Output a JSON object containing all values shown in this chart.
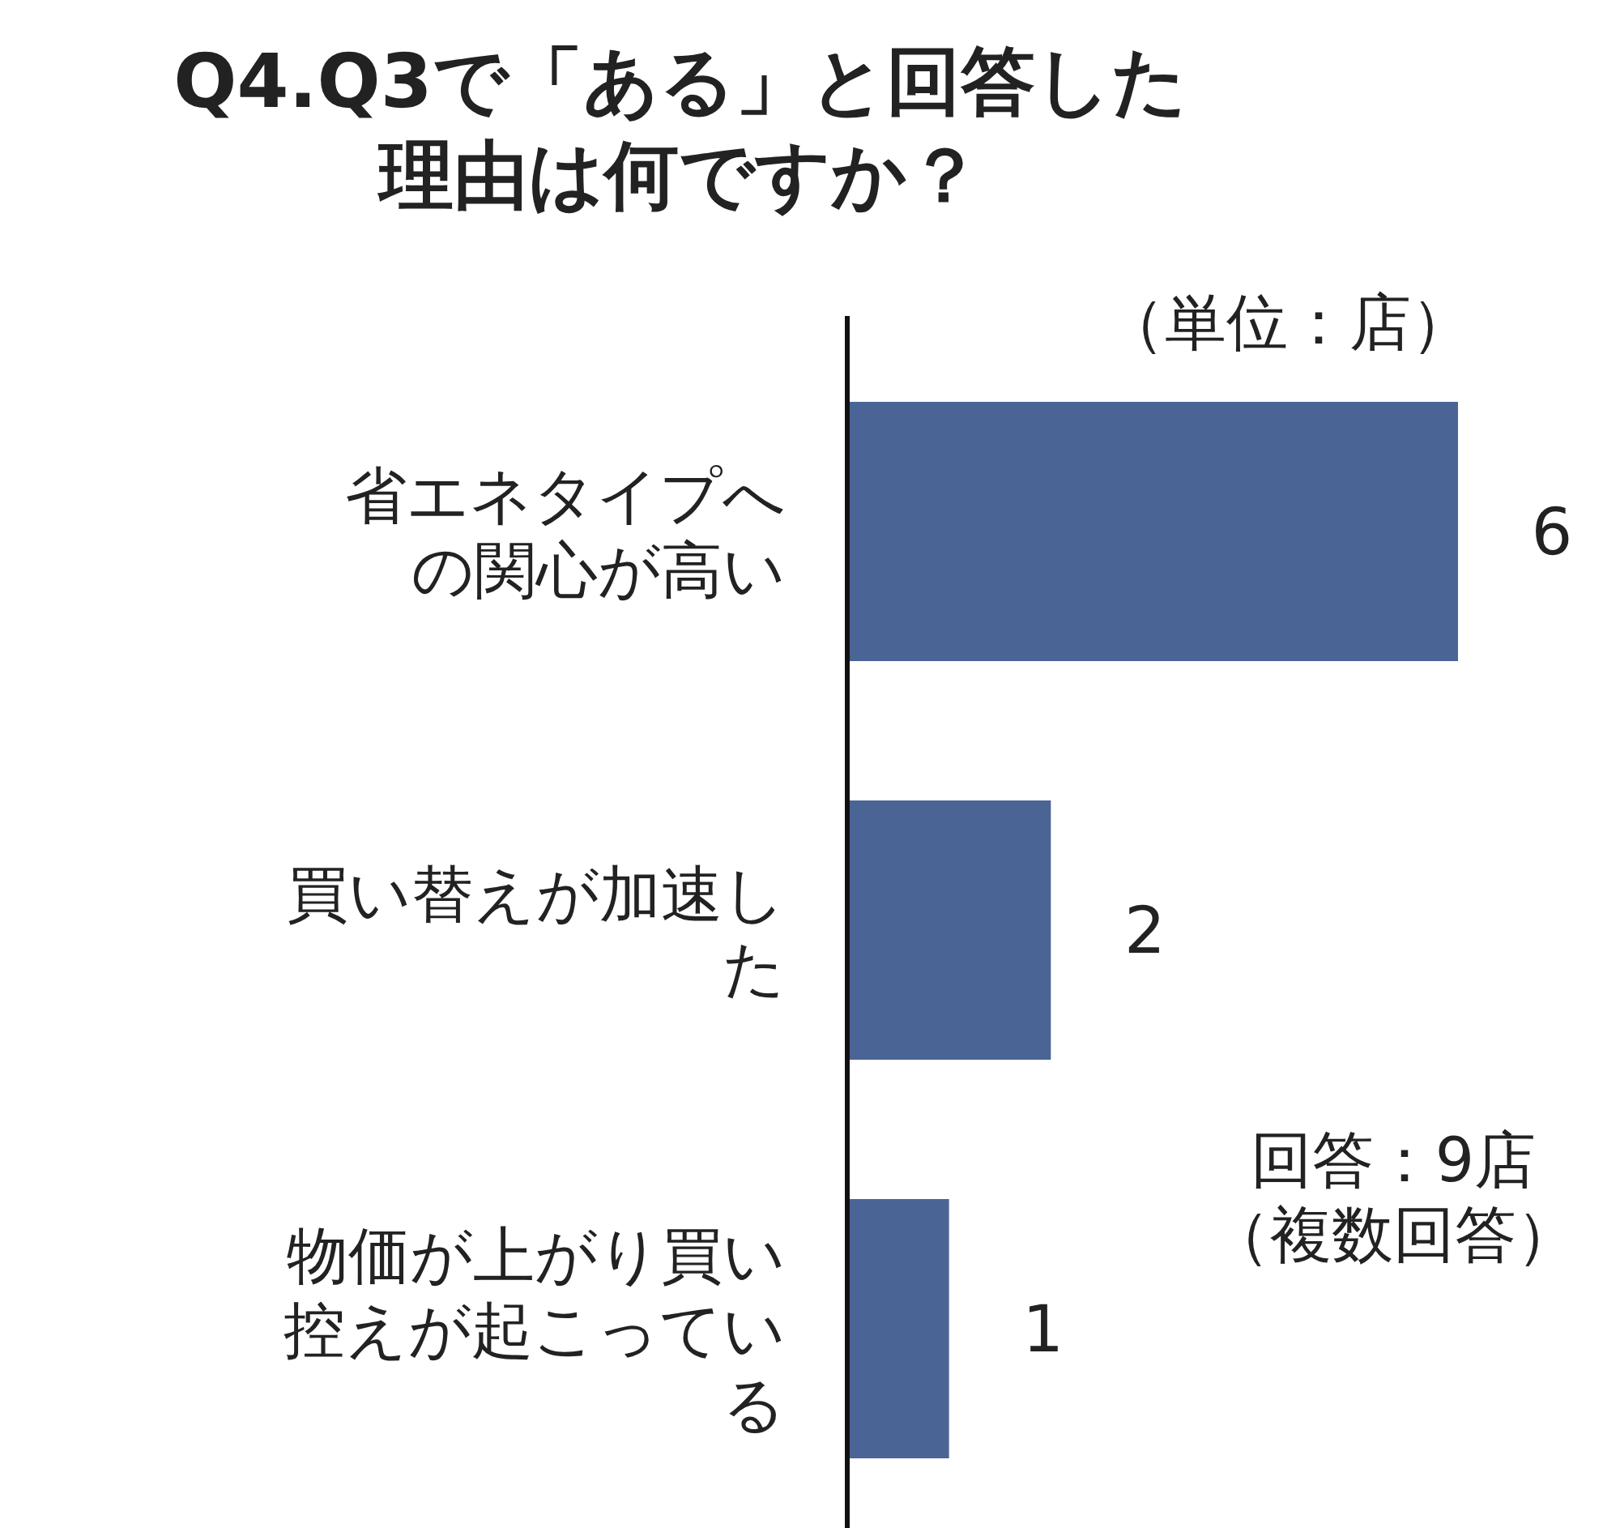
{
  "chart_data": {
    "type": "bar",
    "orientation": "horizontal",
    "data_labels": true,
    "title": "Q4.Q3で「ある」と回答した理由は何ですか？",
    "categories": [
      "省エネタイプへの関心が高い",
      "買い替えが加速した",
      "物価が上がり買い控えが起こっている"
    ],
    "values": [
      6,
      2,
      1
    ],
    "color": "#4a6595",
    "annotations": [
      "（単位：店）",
      "回答：9店（複数回答）"
    ]
  }
}
